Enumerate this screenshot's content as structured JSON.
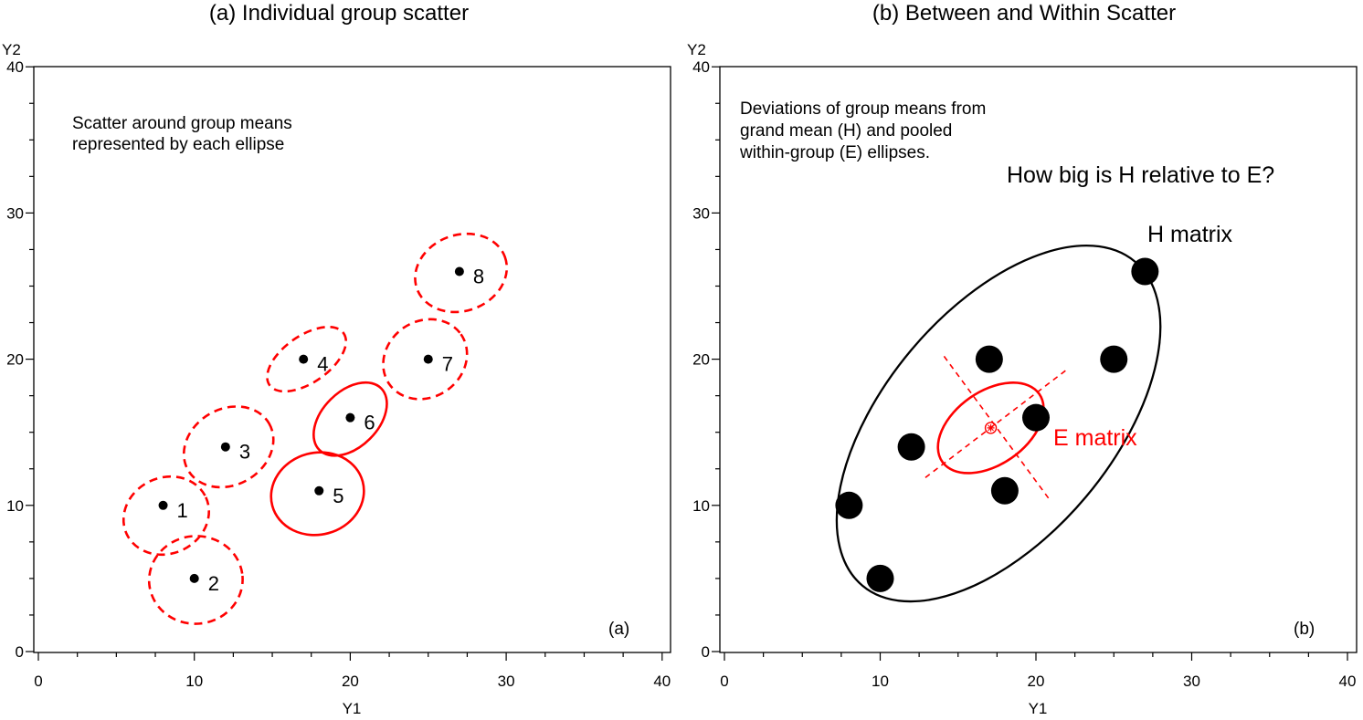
{
  "chart_data": [
    {
      "type": "scatter",
      "title": "(a) Individual group scatter",
      "xlabel": "Y1",
      "ylabel": "Y2",
      "xlim": [
        0,
        40
      ],
      "ylim": [
        0,
        40
      ],
      "xticks": [
        0,
        10,
        20,
        30,
        40
      ],
      "yticks": [
        0,
        10,
        20,
        30,
        40
      ],
      "grid": false,
      "annotation": "Scatter around group means\nrepresented by each ellipse",
      "panel_tag": "(a)",
      "series": [
        {
          "points": [
            {
              "label": "1",
              "x": 8,
              "y": 10
            },
            {
              "label": "2",
              "x": 10,
              "y": 5
            },
            {
              "label": "3",
              "x": 12,
              "y": 14
            },
            {
              "label": "4",
              "x": 17,
              "y": 20
            },
            {
              "label": "5",
              "x": 18,
              "y": 11
            },
            {
              "label": "6",
              "x": 20,
              "y": 16
            },
            {
              "label": "7",
              "x": 25,
              "y": 20
            },
            {
              "label": "8",
              "x": 27,
              "y": 26
            }
          ]
        }
      ],
      "ellipses": [
        {
          "group": "1",
          "cx": 8.2,
          "cy": 9.3,
          "rx": 2.8,
          "ry": 2.6,
          "angle": 25,
          "style": "dashed",
          "color": "#ff0000"
        },
        {
          "group": "2",
          "cx": 10.1,
          "cy": 4.9,
          "rx": 3.0,
          "ry": 3.0,
          "angle": 5,
          "style": "dashed",
          "color": "#ff0000"
        },
        {
          "group": "3",
          "cx": 12.2,
          "cy": 14.0,
          "rx": 3.0,
          "ry": 2.6,
          "angle": 30,
          "style": "dashed",
          "color": "#ff0000"
        },
        {
          "group": "4",
          "cx": 17.2,
          "cy": 20.0,
          "rx": 2.9,
          "ry": 1.6,
          "angle": 35,
          "style": "dashed",
          "color": "#ff0000"
        },
        {
          "group": "5",
          "cx": 17.9,
          "cy": 10.8,
          "rx": 3.0,
          "ry": 2.8,
          "angle": 15,
          "style": "solid",
          "color": "#ff0000"
        },
        {
          "group": "6",
          "cx": 20.0,
          "cy": 15.9,
          "rx": 2.8,
          "ry": 1.9,
          "angle": 45,
          "style": "solid",
          "color": "#ff0000"
        },
        {
          "group": "7",
          "cx": 24.8,
          "cy": 20.0,
          "rx": 2.8,
          "ry": 2.6,
          "angle": 35,
          "style": "dashed",
          "color": "#ff0000"
        },
        {
          "group": "8",
          "cx": 27.1,
          "cy": 25.9,
          "rx": 3.0,
          "ry": 2.6,
          "angle": 20,
          "style": "dashed",
          "color": "#ff0000"
        }
      ]
    },
    {
      "type": "scatter",
      "title": "(b) Between and Within Scatter",
      "xlabel": "Y1",
      "ylabel": "Y2",
      "xlim": [
        0,
        40
      ],
      "ylim": [
        0,
        40
      ],
      "xticks": [
        0,
        10,
        20,
        30,
        40
      ],
      "yticks": [
        0,
        10,
        20,
        30,
        40
      ],
      "grid": false,
      "annotation": "Deviations of group means from\ngrand mean (H) and pooled\nwithin-group (E) ellipses.",
      "question": "How big is H relative to E?",
      "panel_tag": "(b)",
      "series": [
        {
          "points": [
            {
              "x": 8,
              "y": 10
            },
            {
              "x": 10,
              "y": 5
            },
            {
              "x": 12,
              "y": 14
            },
            {
              "x": 17,
              "y": 20
            },
            {
              "x": 18,
              "y": 11
            },
            {
              "x": 20,
              "y": 16
            },
            {
              "x": 25,
              "y": 20
            },
            {
              "x": 27,
              "y": 26
            }
          ]
        }
      ],
      "grand_mean": {
        "x": 17.1,
        "y": 15.3
      },
      "h_ellipse": {
        "label": "H matrix",
        "cx": 17.6,
        "cy": 15.6,
        "rx": 13.6,
        "ry": 7.8,
        "angle": 50,
        "color": "#000000"
      },
      "e_ellipse": {
        "label": "E matrix",
        "cx": 17.1,
        "cy": 15.3,
        "rx": 3.8,
        "ry": 2.5,
        "angle": 35,
        "color": "#ff0000"
      },
      "e_axes": [
        {
          "x1": 12.9,
          "y1": 11.9,
          "x2": 22.0,
          "y2": 19.3
        },
        {
          "x1": 14.1,
          "y1": 20.2,
          "x2": 20.8,
          "y2": 10.5
        }
      ]
    }
  ]
}
